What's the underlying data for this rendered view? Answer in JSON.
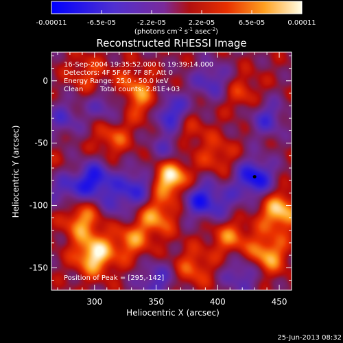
{
  "colorbar": {
    "ticks": [
      "-0.00011",
      "-6.5e-05",
      "-2.2e-05",
      "2.2e-05",
      "6.5e-05",
      "0.00011"
    ],
    "label_main": "(photons cm",
    "label_sup1": "-2",
    "label_mid": " s",
    "label_sup2": "-1",
    "label_end": " asec",
    "label_sup3": "-2",
    "label_close": ")"
  },
  "header": {
    "line1": "16-Sep-2004 19:35:52.000 to 19:39:14.000",
    "line2": "Detectors: 4F 5F 6F 7F 8F, Att 0",
    "line3": "Energy Range: 25.0 - 50.0 keV",
    "line4_a": "Clean",
    "line4_b": "Total counts: 2.81E+03"
  },
  "peak_label": "Position of Peak = [295,-142]",
  "timestamp": "25-Jun-2013 08:32",
  "colors": {
    "background": "#000000",
    "text": "#ffffff"
  },
  "chart_data": {
    "type": "heatmap",
    "title": "Reconstructed RHESSI Image",
    "xlabel": "Heliocentric X (arcsec)",
    "ylabel": "Heliocentric Y (arcsec)",
    "xlim": [
      265,
      460
    ],
    "ylim": [
      -168,
      23
    ],
    "xticks": [
      300,
      350,
      400,
      450
    ],
    "yticks": [
      0,
      -50,
      -100,
      -150
    ],
    "colormap": "rainbow-heat: blue-purple-red-orange-yellow-white",
    "zlim": [
      -0.00011,
      0.00011
    ],
    "peak": [
      295,
      -142
    ],
    "marker": [
      430,
      -77
    ],
    "blobs": [
      {
        "x": 362,
        "y": -78,
        "w": 0.00011
      },
      {
        "x": 300,
        "y": -140,
        "w": 0.0001
      },
      {
        "x": 350,
        "y": -108,
        "w": 7e-05
      },
      {
        "x": 290,
        "y": -112,
        "w": 7e-05
      },
      {
        "x": 330,
        "y": -128,
        "w": 6e-05
      },
      {
        "x": 450,
        "y": -105,
        "w": 9e-05
      },
      {
        "x": 440,
        "y": -140,
        "w": 8e-05
      },
      {
        "x": 410,
        "y": -125,
        "w": 6e-05
      },
      {
        "x": 315,
        "y": -45,
        "w": 5e-05
      },
      {
        "x": 345,
        "y": -20,
        "w": 6e-05
      },
      {
        "x": 375,
        "y": -40,
        "w": 4e-05
      },
      {
        "x": 330,
        "y": -5,
        "w": 5e-05
      },
      {
        "x": 295,
        "y": 5,
        "w": 4e-05
      },
      {
        "x": 420,
        "y": -10,
        "w": 4e-05
      },
      {
        "x": 400,
        "y": -60,
        "w": 4e-05
      },
      {
        "x": 380,
        "y": -150,
        "w": 5e-05
      },
      {
        "x": 270,
        "y": -75,
        "w": 3e-05
      },
      {
        "x": 360,
        "y": -25,
        "w": -0.0001
      },
      {
        "x": 430,
        "y": -78,
        "w": -0.0001
      },
      {
        "x": 300,
        "y": -80,
        "w": -9e-05
      },
      {
        "x": 335,
        "y": -85,
        "w": -7e-05
      },
      {
        "x": 275,
        "y": -85,
        "w": -7e-05
      },
      {
        "x": 385,
        "y": -95,
        "w": -8e-05
      },
      {
        "x": 350,
        "y": -160,
        "w": -6e-05
      },
      {
        "x": 420,
        "y": -155,
        "w": -6e-05
      },
      {
        "x": 395,
        "y": 0,
        "w": -6e-05
      },
      {
        "x": 440,
        "y": -30,
        "w": -6e-05
      },
      {
        "x": 310,
        "y": -20,
        "w": -5e-05
      },
      {
        "x": 275,
        "y": -30,
        "w": -5e-05
      },
      {
        "x": 360,
        "y": -55,
        "w": -5e-05
      },
      {
        "x": 405,
        "y": -100,
        "w": -4e-05
      },
      {
        "x": 320,
        "y": -100,
        "w": -4e-05
      }
    ]
  }
}
